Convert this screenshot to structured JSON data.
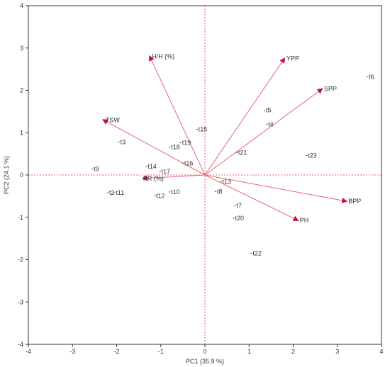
{
  "chart_data": {
    "type": "scatter",
    "subtype": "pca-biplot",
    "xlabel": "PC1  (35.9 %)",
    "ylabel": "PC2  (24.1 %)",
    "xlim": [
      -4,
      4
    ],
    "ylim": [
      -4,
      4
    ],
    "xticks": [
      -4,
      -3,
      -2,
      -1,
      0,
      1,
      2,
      3,
      4
    ],
    "yticks": [
      -4,
      -3,
      -2,
      -1,
      0,
      1,
      2,
      3,
      4
    ],
    "grid": false,
    "reference_lines": [
      {
        "axis": "x",
        "value": 0
      },
      {
        "axis": "y",
        "value": 0
      }
    ],
    "colors": {
      "vectors": "#e8636f",
      "reference": "#e0303a",
      "points": "#555555",
      "frame": "#333333"
    },
    "vectors": [
      {
        "name": "H/H (%)",
        "x": -1.25,
        "y": 2.8
      },
      {
        "name": "YPP",
        "x": 1.8,
        "y": 2.75
      },
      {
        "name": "SPP",
        "x": 2.65,
        "y": 2.03
      },
      {
        "name": "TSW",
        "x": -2.3,
        "y": 1.3
      },
      {
        "name": "PR (%)",
        "x": -1.4,
        "y": -0.08
      },
      {
        "name": "BPP",
        "x": 3.2,
        "y": -0.62
      },
      {
        "name": "PH",
        "x": 2.1,
        "y": -1.07
      }
    ],
    "points": [
      {
        "label": "t6",
        "x": 3.68,
        "y": 2.32
      },
      {
        "label": "t5",
        "x": 1.35,
        "y": 1.53
      },
      {
        "label": "t4",
        "x": 1.4,
        "y": 1.2
      },
      {
        "label": "t3",
        "x": -1.95,
        "y": 0.78
      },
      {
        "label": "t15",
        "x": -0.18,
        "y": 1.08
      },
      {
        "label": "t19",
        "x": -0.55,
        "y": 0.76
      },
      {
        "label": "t18",
        "x": -0.8,
        "y": 0.66
      },
      {
        "label": "t21",
        "x": 0.72,
        "y": 0.53
      },
      {
        "label": "t23",
        "x": 2.3,
        "y": 0.46
      },
      {
        "label": "t16",
        "x": -0.5,
        "y": 0.28
      },
      {
        "label": "t14",
        "x": -1.33,
        "y": 0.2
      },
      {
        "label": "t17",
        "x": -1.02,
        "y": 0.08
      },
      {
        "label": "t9",
        "x": -2.55,
        "y": 0.14
      },
      {
        "label": "t13",
        "x": 0.36,
        "y": -0.16
      },
      {
        "label": "t8",
        "x": 0.24,
        "y": -0.39
      },
      {
        "label": "t10",
        "x": -0.8,
        "y": -0.4
      },
      {
        "label": "t12",
        "x": -1.14,
        "y": -0.49
      },
      {
        "label": "t11",
        "x": -2.05,
        "y": -0.42
      },
      {
        "label": "t2",
        "x": -2.2,
        "y": -0.42
      },
      {
        "label": "t7",
        "x": 0.68,
        "y": -0.72
      },
      {
        "label": "t20",
        "x": 0.65,
        "y": -1.02
      },
      {
        "label": "t22",
        "x": 1.05,
        "y": -1.85
      }
    ]
  }
}
